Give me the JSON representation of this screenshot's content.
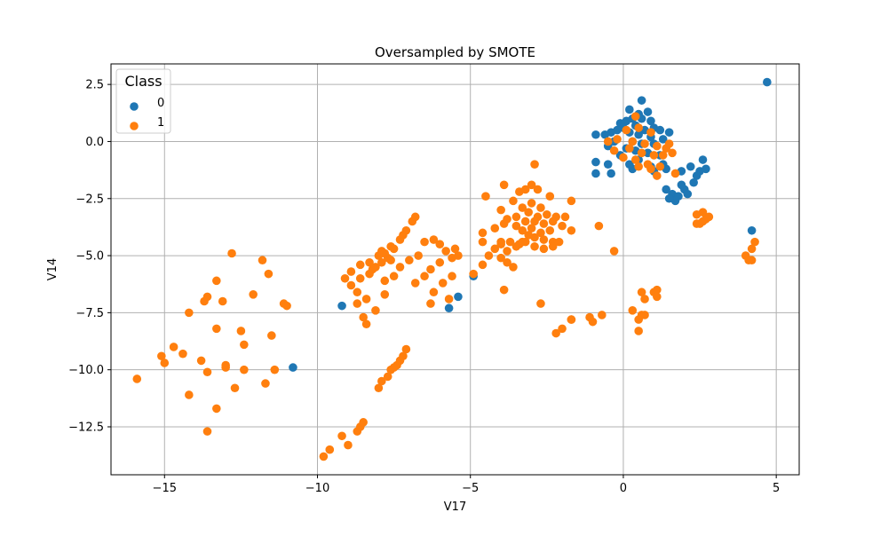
{
  "chart_data": {
    "type": "scatter",
    "title": "Oversampled by SMOTE",
    "xlabel": "V17",
    "ylabel": "V14",
    "xlim": [
      -16.75,
      5.75
    ],
    "ylim": [
      -14.6,
      3.4
    ],
    "xticks": [
      -15,
      -10,
      -5,
      0,
      5
    ],
    "yticks": [
      2.5,
      0.0,
      -2.5,
      -5.0,
      -7.5,
      -10.0,
      -12.5
    ],
    "grid": true,
    "legend": {
      "title": "Class",
      "position": "top-left"
    },
    "series": [
      {
        "name": "0",
        "color": "#1f77b4",
        "points": [
          [
            4.7,
            2.6
          ],
          [
            0.6,
            1.8
          ],
          [
            0.2,
            1.4
          ],
          [
            0.8,
            1.3
          ],
          [
            0.5,
            1.2
          ],
          [
            0.3,
            1.0
          ],
          [
            0.1,
            0.9
          ],
          [
            0.6,
            1.0
          ],
          [
            0.9,
            0.9
          ],
          [
            1.0,
            0.6
          ],
          [
            0.4,
            0.7
          ],
          [
            -0.1,
            0.8
          ],
          [
            0.0,
            0.6
          ],
          [
            0.7,
            0.5
          ],
          [
            1.2,
            0.5
          ],
          [
            1.5,
            0.4
          ],
          [
            -0.2,
            0.5
          ],
          [
            0.2,
            0.4
          ],
          [
            0.5,
            0.3
          ],
          [
            -0.4,
            0.4
          ],
          [
            -0.6,
            0.3
          ],
          [
            -0.9,
            0.3
          ],
          [
            0.9,
            0.2
          ],
          [
            1.3,
            0.1
          ],
          [
            0.3,
            0.0
          ],
          [
            -0.3,
            0.0
          ],
          [
            0.6,
            -0.1
          ],
          [
            1.0,
            -0.1
          ],
          [
            -0.5,
            -0.2
          ],
          [
            0.1,
            -0.3
          ],
          [
            0.4,
            -0.4
          ],
          [
            0.8,
            -0.5
          ],
          [
            1.2,
            -0.6
          ],
          [
            -0.1,
            -0.6
          ],
          [
            0.5,
            -0.8
          ],
          [
            -0.9,
            -0.9
          ],
          [
            -0.5,
            -1.0
          ],
          [
            0.2,
            -1.0
          ],
          [
            0.9,
            -1.1
          ],
          [
            1.3,
            -1.0
          ],
          [
            -0.9,
            -1.4
          ],
          [
            -0.4,
            -1.4
          ],
          [
            0.3,
            -1.2
          ],
          [
            1.0,
            -1.3
          ],
          [
            1.4,
            -1.2
          ],
          [
            1.9,
            -1.3
          ],
          [
            2.2,
            -1.1
          ],
          [
            2.5,
            -1.3
          ],
          [
            2.6,
            -0.8
          ],
          [
            2.7,
            -1.2
          ],
          [
            2.4,
            -1.5
          ],
          [
            1.4,
            -2.1
          ],
          [
            1.6,
            -2.3
          ],
          [
            1.8,
            -2.4
          ],
          [
            2.0,
            -2.1
          ],
          [
            1.9,
            -1.9
          ],
          [
            2.1,
            -2.3
          ],
          [
            1.7,
            -2.6
          ],
          [
            1.5,
            -2.5
          ],
          [
            2.3,
            -1.8
          ],
          [
            4.2,
            -3.9
          ],
          [
            -9.2,
            -7.2
          ],
          [
            -5.7,
            -7.3
          ],
          [
            -5.4,
            -6.8
          ],
          [
            -4.9,
            -5.9
          ],
          [
            -10.8,
            -9.9
          ]
        ]
      },
      {
        "name": "1",
        "color": "#ff7f0e",
        "points": [
          [
            0.4,
            1.1
          ],
          [
            0.1,
            0.5
          ],
          [
            0.5,
            0.6
          ],
          [
            0.9,
            0.4
          ],
          [
            -0.2,
            0.1
          ],
          [
            0.3,
            0.0
          ],
          [
            0.7,
            -0.1
          ],
          [
            1.1,
            -0.2
          ],
          [
            1.4,
            -0.3
          ],
          [
            -0.5,
            0.0
          ],
          [
            0.2,
            -0.3
          ],
          [
            0.6,
            -0.5
          ],
          [
            1.0,
            -0.6
          ],
          [
            1.3,
            -0.6
          ],
          [
            1.6,
            -0.5
          ],
          [
            0.0,
            -0.7
          ],
          [
            0.4,
            -0.8
          ],
          [
            0.8,
            -1.0
          ],
          [
            1.2,
            -1.1
          ],
          [
            0.5,
            -1.1
          ],
          [
            0.9,
            -1.2
          ],
          [
            1.1,
            -1.5
          ],
          [
            1.7,
            -1.4
          ],
          [
            -0.3,
            -0.4
          ],
          [
            1.5,
            -0.1
          ],
          [
            2.4,
            -3.2
          ],
          [
            2.6,
            -3.1
          ],
          [
            2.7,
            -3.4
          ],
          [
            2.5,
            -3.6
          ],
          [
            2.8,
            -3.3
          ],
          [
            2.4,
            -3.6
          ],
          [
            2.6,
            -3.5
          ],
          [
            -4.5,
            -2.4
          ],
          [
            -3.9,
            -1.9
          ],
          [
            -3.4,
            -2.2
          ],
          [
            -3.2,
            -2.1
          ],
          [
            -3.0,
            -1.9
          ],
          [
            -2.9,
            -1.0
          ],
          [
            -2.8,
            -2.1
          ],
          [
            -2.4,
            -2.4
          ],
          [
            -1.7,
            -2.6
          ],
          [
            -4.0,
            -3.0
          ],
          [
            -3.6,
            -2.6
          ],
          [
            -3.3,
            -2.9
          ],
          [
            -3.0,
            -2.7
          ],
          [
            -2.7,
            -2.9
          ],
          [
            -3.1,
            -3.1
          ],
          [
            -2.8,
            -3.3
          ],
          [
            -2.5,
            -3.2
          ],
          [
            -2.2,
            -3.3
          ],
          [
            -3.5,
            -3.3
          ],
          [
            -3.8,
            -3.4
          ],
          [
            -3.2,
            -3.5
          ],
          [
            -2.9,
            -3.5
          ],
          [
            -2.6,
            -3.6
          ],
          [
            -2.3,
            -3.5
          ],
          [
            -3.0,
            -3.8
          ],
          [
            -2.7,
            -4.0
          ],
          [
            -2.4,
            -3.9
          ],
          [
            -2.0,
            -3.7
          ],
          [
            -1.7,
            -3.9
          ],
          [
            -4.2,
            -3.8
          ],
          [
            -3.9,
            -3.6
          ],
          [
            -3.5,
            -3.7
          ],
          [
            -3.3,
            -3.9
          ],
          [
            -3.1,
            -4.1
          ],
          [
            -2.9,
            -4.2
          ],
          [
            -2.6,
            -4.3
          ],
          [
            -2.3,
            -4.4
          ],
          [
            -4.0,
            -4.4
          ],
          [
            -3.7,
            -4.4
          ],
          [
            -3.4,
            -4.5
          ],
          [
            -3.2,
            -4.4
          ],
          [
            -2.9,
            -4.6
          ],
          [
            -2.6,
            -4.7
          ],
          [
            -2.3,
            -4.6
          ],
          [
            -2.1,
            -4.4
          ],
          [
            -4.6,
            -4.0
          ],
          [
            -4.6,
            -4.4
          ],
          [
            -1.9,
            -3.3
          ],
          [
            -4.9,
            -5.8
          ],
          [
            -4.6,
            -5.4
          ],
          [
            -4.4,
            -5.0
          ],
          [
            -4.2,
            -4.7
          ],
          [
            -4.0,
            -4.5
          ],
          [
            -4.0,
            -5.1
          ],
          [
            -3.8,
            -5.3
          ],
          [
            -3.6,
            -5.5
          ],
          [
            -3.9,
            -6.5
          ],
          [
            -2.7,
            -7.1
          ],
          [
            -3.8,
            -4.8
          ],
          [
            -3.5,
            -4.6
          ],
          [
            -3.3,
            -4.4
          ],
          [
            -9.1,
            -6.0
          ],
          [
            -8.9,
            -5.7
          ],
          [
            -8.6,
            -5.4
          ],
          [
            -8.3,
            -5.8
          ],
          [
            -8.1,
            -5.5
          ],
          [
            -7.9,
            -5.3
          ],
          [
            -7.7,
            -5.1
          ],
          [
            -7.9,
            -4.8
          ],
          [
            -7.6,
            -4.6
          ],
          [
            -7.3,
            -4.3
          ],
          [
            -7.1,
            -3.9
          ],
          [
            -6.9,
            -3.5
          ],
          [
            -6.8,
            -3.3
          ],
          [
            -7.2,
            -4.1
          ],
          [
            -7.5,
            -4.7
          ],
          [
            -8.0,
            -5.0
          ],
          [
            -8.3,
            -5.3
          ],
          [
            -8.6,
            -6.0
          ],
          [
            -8.9,
            -6.3
          ],
          [
            -8.7,
            -6.6
          ],
          [
            -8.4,
            -6.9
          ],
          [
            -8.1,
            -7.4
          ],
          [
            -8.5,
            -7.7
          ],
          [
            -8.4,
            -8.0
          ],
          [
            -8.7,
            -7.1
          ],
          [
            -7.8,
            -6.7
          ],
          [
            -7.5,
            -5.9
          ],
          [
            -7.3,
            -5.5
          ],
          [
            -7.0,
            -5.2
          ],
          [
            -6.7,
            -5.0
          ],
          [
            -6.5,
            -4.4
          ],
          [
            -6.2,
            -4.3
          ],
          [
            -6.0,
            -4.5
          ],
          [
            -5.8,
            -4.8
          ],
          [
            -5.6,
            -5.1
          ],
          [
            -5.5,
            -4.7
          ],
          [
            -6.3,
            -5.6
          ],
          [
            -6.5,
            -5.9
          ],
          [
            -6.8,
            -6.2
          ],
          [
            -7.8,
            -6.1
          ],
          [
            -6.3,
            -7.1
          ],
          [
            -6.2,
            -6.6
          ],
          [
            -5.9,
            -6.2
          ],
          [
            -5.6,
            -5.9
          ],
          [
            -5.7,
            -6.9
          ],
          [
            -6.0,
            -5.3
          ],
          [
            -7.8,
            -4.9
          ],
          [
            -8.2,
            -5.6
          ],
          [
            -7.6,
            -5.2
          ],
          [
            -5.4,
            -5.0
          ],
          [
            -9.6,
            -13.5
          ],
          [
            -9.8,
            -13.8
          ],
          [
            -9.2,
            -12.9
          ],
          [
            -9.0,
            -13.3
          ],
          [
            -8.7,
            -12.7
          ],
          [
            -8.6,
            -12.5
          ],
          [
            -8.5,
            -12.3
          ],
          [
            -8.0,
            -10.8
          ],
          [
            -7.9,
            -10.5
          ],
          [
            -7.7,
            -10.3
          ],
          [
            -7.6,
            -10.0
          ],
          [
            -7.4,
            -9.8
          ],
          [
            -7.3,
            -9.6
          ],
          [
            -7.2,
            -9.4
          ],
          [
            -7.1,
            -9.1
          ],
          [
            -7.5,
            -9.9
          ],
          [
            -15.9,
            -10.4
          ],
          [
            -15.1,
            -9.4
          ],
          [
            -15.0,
            -9.7
          ],
          [
            -14.7,
            -9.0
          ],
          [
            -14.4,
            -9.3
          ],
          [
            -14.2,
            -7.5
          ],
          [
            -14.2,
            -11.1
          ],
          [
            -13.8,
            -9.6
          ],
          [
            -13.6,
            -10.1
          ],
          [
            -13.7,
            -7.0
          ],
          [
            -13.6,
            -6.8
          ],
          [
            -13.3,
            -6.1
          ],
          [
            -13.3,
            -8.2
          ],
          [
            -13.1,
            -7.0
          ],
          [
            -13.0,
            -9.8
          ],
          [
            -12.7,
            -10.8
          ],
          [
            -12.8,
            -4.9
          ],
          [
            -12.5,
            -8.3
          ],
          [
            -12.4,
            -8.9
          ],
          [
            -12.4,
            -10.0
          ],
          [
            -12.1,
            -6.7
          ],
          [
            -11.8,
            -5.2
          ],
          [
            -11.7,
            -10.6
          ],
          [
            -11.5,
            -8.5
          ],
          [
            -11.6,
            -5.8
          ],
          [
            -11.4,
            -10.0
          ],
          [
            -11.1,
            -7.1
          ],
          [
            -11.0,
            -7.2
          ],
          [
            -13.3,
            -11.7
          ],
          [
            -13.6,
            -12.7
          ],
          [
            -13.0,
            -9.9
          ],
          [
            -1.7,
            -7.8
          ],
          [
            -1.1,
            -7.7
          ],
          [
            -1.0,
            -7.9
          ],
          [
            -0.7,
            -7.6
          ],
          [
            -0.3,
            -4.8
          ],
          [
            -0.8,
            -3.7
          ],
          [
            -2.0,
            -8.2
          ],
          [
            -2.2,
            -8.4
          ],
          [
            -1.7,
            -7.8
          ],
          [
            0.3,
            -7.4
          ],
          [
            0.5,
            -7.8
          ],
          [
            0.6,
            -7.6
          ],
          [
            0.5,
            -8.3
          ],
          [
            0.7,
            -7.6
          ],
          [
            0.6,
            -6.6
          ],
          [
            0.7,
            -6.9
          ],
          [
            1.0,
            -6.6
          ],
          [
            1.1,
            -6.5
          ],
          [
            1.1,
            -6.8
          ],
          [
            4.0,
            -5.0
          ],
          [
            4.2,
            -5.2
          ],
          [
            4.3,
            -4.4
          ],
          [
            4.2,
            -4.7
          ],
          [
            4.1,
            -5.2
          ]
        ]
      }
    ]
  }
}
